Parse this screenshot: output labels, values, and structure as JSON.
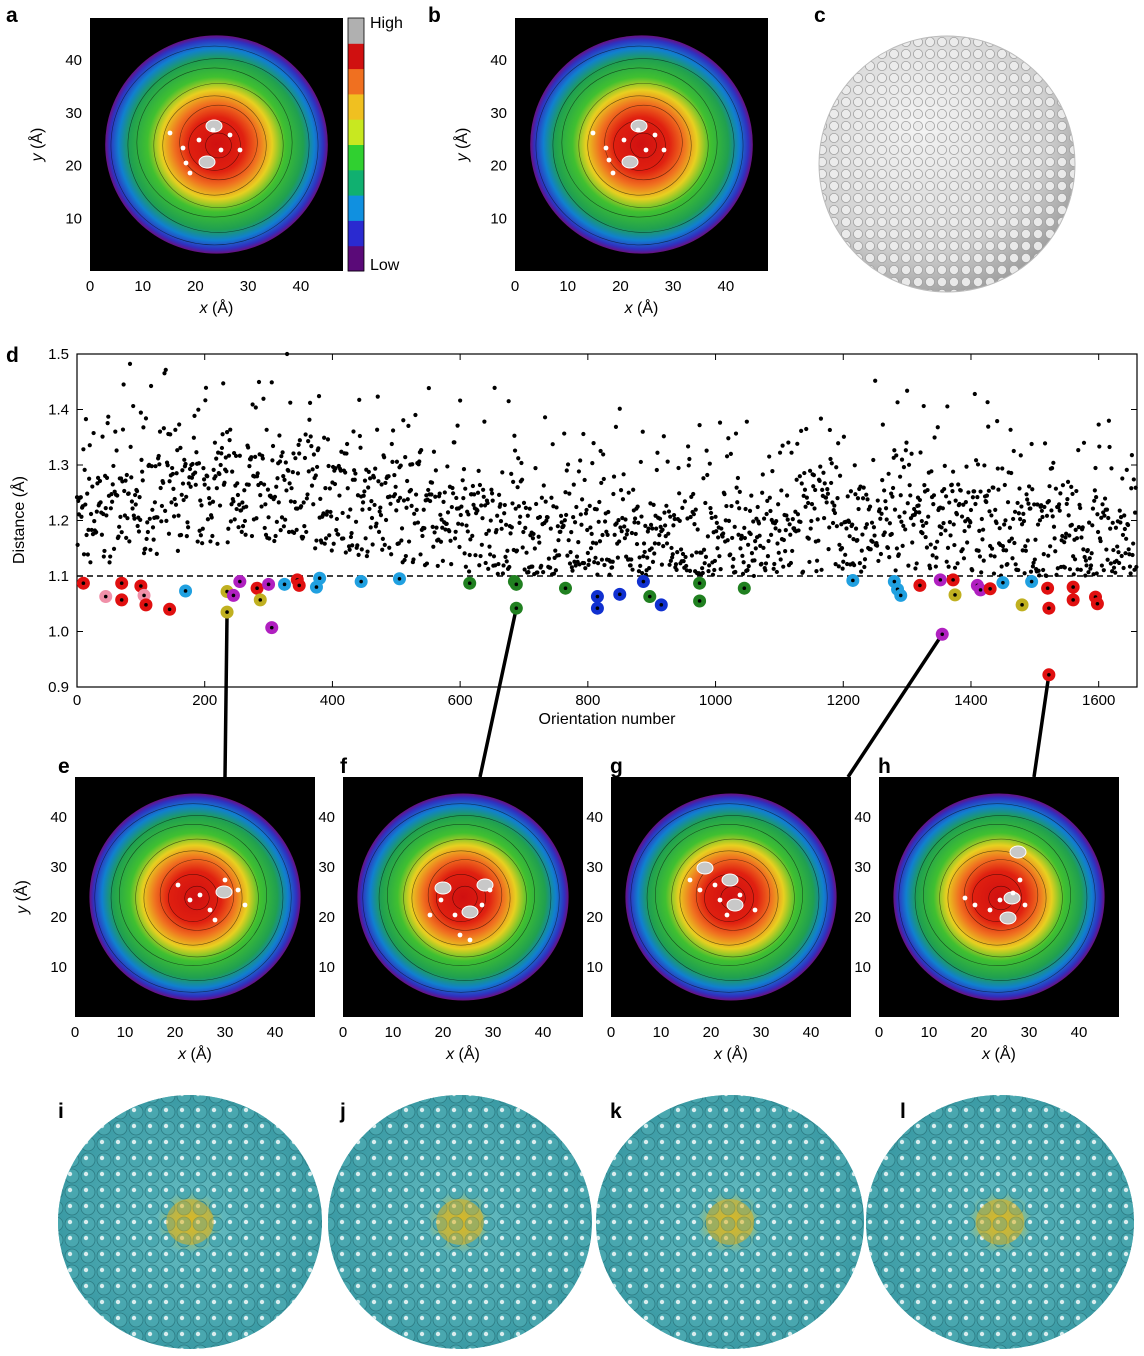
{
  "panel_labels": {
    "a": "a",
    "b": "b",
    "c": "c",
    "d": "d",
    "e": "e",
    "f": "f",
    "g": "g",
    "h": "h",
    "i": "i",
    "j": "j",
    "k": "k",
    "l": "l"
  },
  "colorbar": {
    "high": "High",
    "low": "Low",
    "colors": [
      "#5a0a78",
      "#2a2ad0",
      "#1090e0",
      "#10b070",
      "#30d030",
      "#c8e820",
      "#f0c020",
      "#f07020",
      "#d01010",
      "#b0b0b0"
    ]
  },
  "maps": {
    "x_ticks": [
      "0",
      "10",
      "20",
      "30",
      "40"
    ],
    "y_ticks": [
      "10",
      "20",
      "30",
      "40"
    ],
    "xlabel_italic": "x",
    "xlabel_unit": " (Å)",
    "ylabel_italic": "y",
    "ylabel_unit": " (Å)"
  },
  "chart_data": {
    "type": "scatter",
    "xlabel": "Orientation number",
    "ylabel": "Distance (Å)",
    "xlim": [
      0,
      1660
    ],
    "ylim": [
      0.9,
      1.5
    ],
    "x_ticks": [
      0,
      200,
      400,
      600,
      800,
      1000,
      1200,
      1400,
      1600
    ],
    "y_ticks": [
      "0.9",
      "1.0",
      "1.1",
      "1.2",
      "1.3",
      "1.4",
      "1.5"
    ],
    "threshold": 1.1,
    "highlighted": [
      {
        "x": 10,
        "y": 1.087,
        "color": "#e01010"
      },
      {
        "x": 45,
        "y": 1.063,
        "color": "#f090a8"
      },
      {
        "x": 70,
        "y": 1.087,
        "color": "#e01010"
      },
      {
        "x": 70,
        "y": 1.057,
        "color": "#e01010"
      },
      {
        "x": 100,
        "y": 1.082,
        "color": "#e01010"
      },
      {
        "x": 105,
        "y": 1.065,
        "color": "#f090a8"
      },
      {
        "x": 108,
        "y": 1.048,
        "color": "#e01010"
      },
      {
        "x": 145,
        "y": 1.04,
        "color": "#e01010"
      },
      {
        "x": 170,
        "y": 1.073,
        "color": "#20a0e0"
      },
      {
        "x": 235,
        "y": 1.072,
        "color": "#c0b020"
      },
      {
        "x": 235,
        "y": 1.035,
        "color": "#c0b020"
      },
      {
        "x": 245,
        "y": 1.065,
        "color": "#b020c0"
      },
      {
        "x": 255,
        "y": 1.09,
        "color": "#b020c0"
      },
      {
        "x": 282,
        "y": 1.078,
        "color": "#e01010"
      },
      {
        "x": 287,
        "y": 1.057,
        "color": "#c0b020"
      },
      {
        "x": 300,
        "y": 1.085,
        "color": "#b020c0"
      },
      {
        "x": 305,
        "y": 1.007,
        "color": "#b020c0"
      },
      {
        "x": 325,
        "y": 1.085,
        "color": "#20a0e0"
      },
      {
        "x": 345,
        "y": 1.093,
        "color": "#e01010"
      },
      {
        "x": 348,
        "y": 1.083,
        "color": "#e01010"
      },
      {
        "x": 375,
        "y": 1.08,
        "color": "#20a0e0"
      },
      {
        "x": 380,
        "y": 1.096,
        "color": "#20a0e0"
      },
      {
        "x": 445,
        "y": 1.09,
        "color": "#20a0e0"
      },
      {
        "x": 505,
        "y": 1.095,
        "color": "#20a0e0"
      },
      {
        "x": 615,
        "y": 1.087,
        "color": "#208020"
      },
      {
        "x": 685,
        "y": 1.09,
        "color": "#208020"
      },
      {
        "x": 688,
        "y": 1.085,
        "color": "#208020"
      },
      {
        "x": 688,
        "y": 1.042,
        "color": "#208020"
      },
      {
        "x": 765,
        "y": 1.078,
        "color": "#208020"
      },
      {
        "x": 815,
        "y": 1.063,
        "color": "#1030d0"
      },
      {
        "x": 815,
        "y": 1.042,
        "color": "#1030d0"
      },
      {
        "x": 850,
        "y": 1.067,
        "color": "#1030d0"
      },
      {
        "x": 887,
        "y": 1.09,
        "color": "#1030d0"
      },
      {
        "x": 897,
        "y": 1.063,
        "color": "#208020"
      },
      {
        "x": 915,
        "y": 1.048,
        "color": "#1030d0"
      },
      {
        "x": 975,
        "y": 1.087,
        "color": "#208020"
      },
      {
        "x": 975,
        "y": 1.055,
        "color": "#208020"
      },
      {
        "x": 1045,
        "y": 1.078,
        "color": "#208020"
      },
      {
        "x": 1215,
        "y": 1.092,
        "color": "#20a0e0"
      },
      {
        "x": 1280,
        "y": 1.09,
        "color": "#20a0e0"
      },
      {
        "x": 1285,
        "y": 1.076,
        "color": "#20a0e0"
      },
      {
        "x": 1290,
        "y": 1.065,
        "color": "#20a0e0"
      },
      {
        "x": 1320,
        "y": 1.083,
        "color": "#e01010"
      },
      {
        "x": 1352,
        "y": 1.093,
        "color": "#b020c0"
      },
      {
        "x": 1355,
        "y": 0.995,
        "color": "#b020c0"
      },
      {
        "x": 1372,
        "y": 1.093,
        "color": "#e01010"
      },
      {
        "x": 1375,
        "y": 1.066,
        "color": "#c0b020"
      },
      {
        "x": 1410,
        "y": 1.083,
        "color": "#b020c0"
      },
      {
        "x": 1415,
        "y": 1.075,
        "color": "#b020c0"
      },
      {
        "x": 1430,
        "y": 1.077,
        "color": "#e01010"
      },
      {
        "x": 1450,
        "y": 1.088,
        "color": "#20a0e0"
      },
      {
        "x": 1480,
        "y": 1.048,
        "color": "#c0b020"
      },
      {
        "x": 1495,
        "y": 1.09,
        "color": "#20a0e0"
      },
      {
        "x": 1520,
        "y": 1.078,
        "color": "#e01010"
      },
      {
        "x": 1522,
        "y": 1.042,
        "color": "#e01010"
      },
      {
        "x": 1522,
        "y": 0.922,
        "color": "#e01010"
      },
      {
        "x": 1560,
        "y": 1.08,
        "color": "#e01010"
      },
      {
        "x": 1560,
        "y": 1.057,
        "color": "#e01010"
      },
      {
        "x": 1595,
        "y": 1.062,
        "color": "#e01010"
      },
      {
        "x": 1598,
        "y": 1.05,
        "color": "#e01010"
      }
    ],
    "connectors": [
      {
        "x": 235,
        "y": 1.035,
        "panel": "e"
      },
      {
        "x": 688,
        "y": 1.042,
        "panel": "f"
      },
      {
        "x": 1355,
        "y": 0.995,
        "panel": "g"
      },
      {
        "x": 1522,
        "y": 0.922,
        "panel": "h"
      }
    ]
  }
}
